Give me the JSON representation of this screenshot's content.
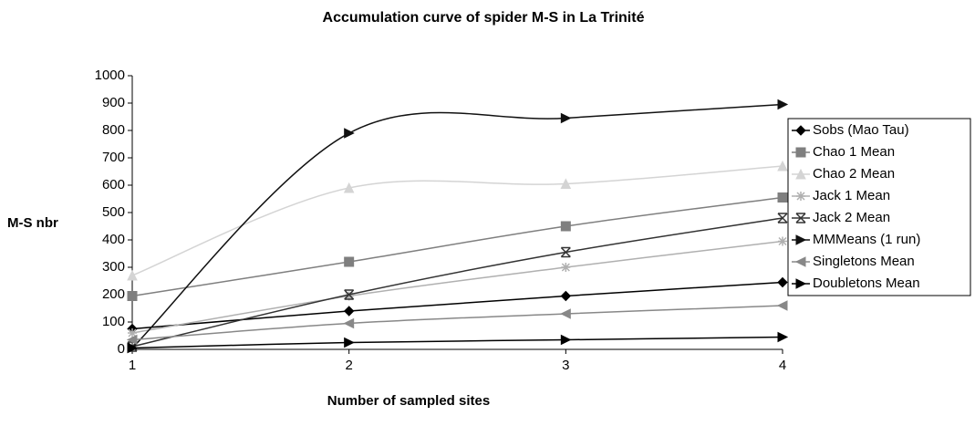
{
  "chart_data": {
    "type": "line",
    "title": "Accumulation curve of spider M-S in La Trinité",
    "x_label": "Number of sampled sites",
    "y_label": "M-S nbr",
    "x": [
      1,
      2,
      3,
      4
    ],
    "xlim": [
      1,
      4
    ],
    "xticks": [
      1,
      2,
      3,
      4
    ],
    "ylim": [
      0,
      1000
    ],
    "yticks": [
      0,
      100,
      200,
      300,
      400,
      500,
      600,
      700,
      800,
      900,
      1000
    ],
    "grid": false,
    "smooth": true,
    "legend": "right",
    "series": [
      {
        "name": "Sobs (Mao Tau)",
        "color": "#000000",
        "marker": "diamond",
        "values": [
          75,
          140,
          195,
          245
        ]
      },
      {
        "name": "Chao 1 Mean",
        "color": "#7f7f7f",
        "marker": "square",
        "values": [
          195,
          320,
          450,
          555
        ]
      },
      {
        "name": "Chao 2 Mean",
        "color": "#d4d4d4",
        "marker": "triangle",
        "values": [
          270,
          590,
          605,
          670
        ]
      },
      {
        "name": "Jack 1 Mean",
        "color": "#b0b0b0",
        "marker": "star",
        "values": [
          60,
          195,
          300,
          395
        ]
      },
      {
        "name": "Jack 2 Mean",
        "color": "#333333",
        "marker": "xbar",
        "values": [
          10,
          200,
          355,
          480
        ]
      },
      {
        "name": "MMMeans (1 run)",
        "color": "#111111",
        "marker": "rtri",
        "values": [
          5,
          790,
          845,
          895
        ]
      },
      {
        "name": "Singletons Mean",
        "color": "#888888",
        "marker": "ltri",
        "values": [
          35,
          95,
          130,
          160
        ]
      },
      {
        "name": "Doubletons Mean",
        "color": "#000000",
        "marker": "rtri",
        "values": [
          5,
          25,
          35,
          45
        ]
      }
    ]
  }
}
